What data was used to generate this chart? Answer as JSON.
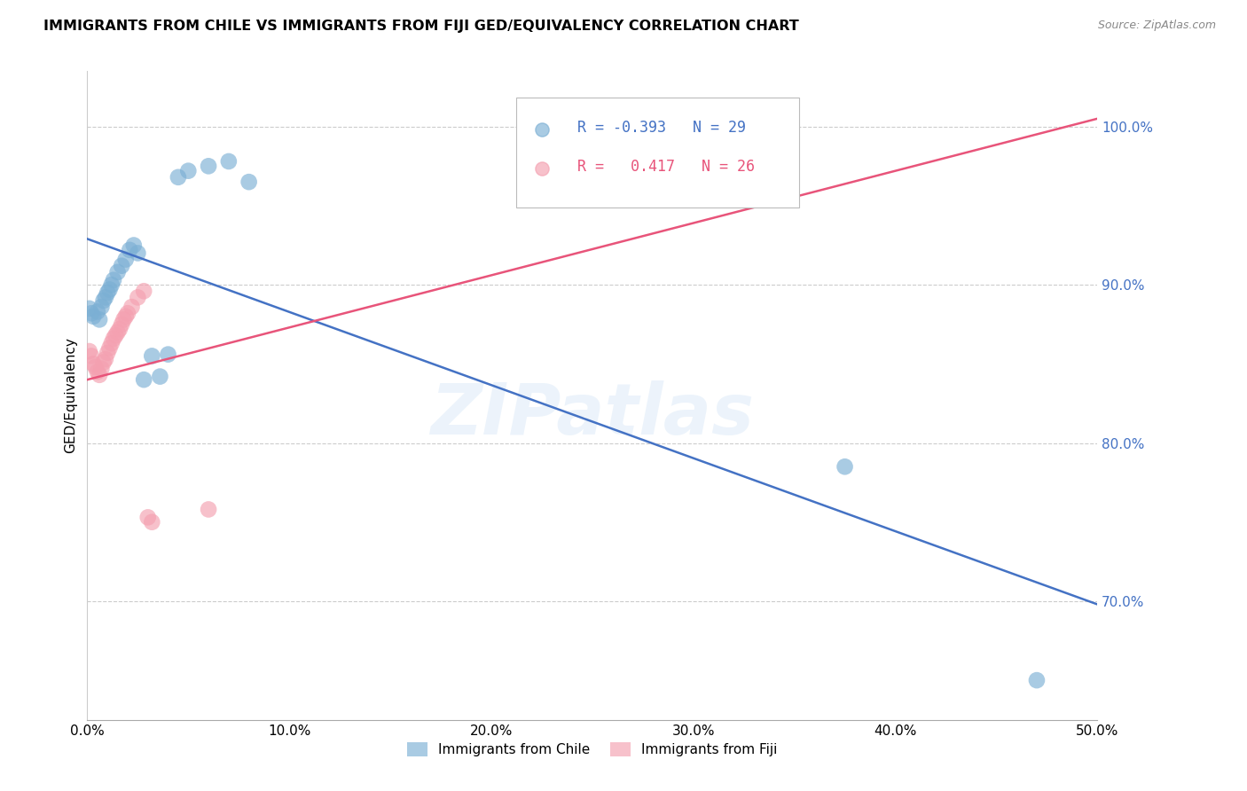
{
  "title": "IMMIGRANTS FROM CHILE VS IMMIGRANTS FROM FIJI GED/EQUIVALENCY CORRELATION CHART",
  "source": "Source: ZipAtlas.com",
  "ylabel": "GED/Equivalency",
  "y_ticks": [
    0.7,
    0.8,
    0.9,
    1.0
  ],
  "y_tick_labels": [
    "70.0%",
    "80.0%",
    "90.0%",
    "100.0%"
  ],
  "x_ticks": [
    0.0,
    0.1,
    0.2,
    0.3,
    0.4,
    0.5
  ],
  "x_tick_labels": [
    "0.0%",
    "10.0%",
    "20.0%",
    "30.0%",
    "40.0%",
    "50.0%"
  ],
  "legend_chile": "Immigrants from Chile",
  "legend_fiji": "Immigrants from Fiji",
  "R_chile": -0.393,
  "N_chile": 29,
  "R_fiji": 0.417,
  "N_fiji": 26,
  "blue_color": "#7BAFD4",
  "pink_color": "#F4A0B0",
  "blue_line_color": "#4472C4",
  "pink_line_color": "#E8547A",
  "watermark": "ZIPatlas",
  "xlim": [
    0.0,
    0.5
  ],
  "ylim": [
    0.625,
    1.035
  ],
  "chile_x": [
    0.001,
    0.002,
    0.003,
    0.005,
    0.006,
    0.007,
    0.008,
    0.009,
    0.01,
    0.011,
    0.012,
    0.013,
    0.015,
    0.017,
    0.019,
    0.021,
    0.023,
    0.025,
    0.028,
    0.032,
    0.036,
    0.04,
    0.045,
    0.05,
    0.06,
    0.07,
    0.08,
    0.375,
    0.47
  ],
  "chile_y": [
    0.885,
    0.882,
    0.88,
    0.883,
    0.878,
    0.886,
    0.89,
    0.892,
    0.895,
    0.897,
    0.9,
    0.903,
    0.908,
    0.912,
    0.916,
    0.922,
    0.925,
    0.92,
    0.84,
    0.855,
    0.842,
    0.856,
    0.968,
    0.972,
    0.975,
    0.978,
    0.965,
    0.785,
    0.65
  ],
  "fiji_x": [
    0.001,
    0.002,
    0.003,
    0.004,
    0.005,
    0.006,
    0.007,
    0.008,
    0.009,
    0.01,
    0.011,
    0.012,
    0.013,
    0.014,
    0.015,
    0.016,
    0.017,
    0.018,
    0.019,
    0.02,
    0.022,
    0.025,
    0.028,
    0.03,
    0.032,
    0.06
  ],
  "fiji_y": [
    0.858,
    0.855,
    0.85,
    0.848,
    0.845,
    0.843,
    0.847,
    0.851,
    0.853,
    0.857,
    0.86,
    0.863,
    0.866,
    0.868,
    0.87,
    0.872,
    0.875,
    0.878,
    0.88,
    0.882,
    0.886,
    0.892,
    0.896,
    0.753,
    0.75,
    0.758
  ],
  "blue_trendline": [
    0.0,
    0.5,
    0.929,
    0.698
  ],
  "pink_trendline": [
    0.0,
    0.5,
    0.84,
    1.005
  ]
}
